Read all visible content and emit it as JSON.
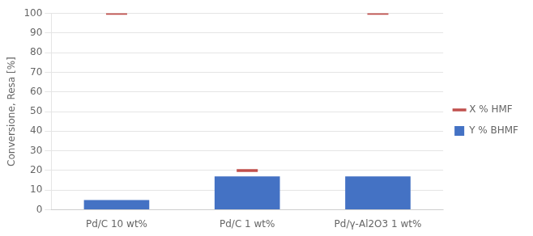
{
  "chart_data": {
    "type": "bar",
    "categories": [
      "Pd/C 10 wt%",
      "Pd/C 1 wt%",
      "Pd/γ-Al2O3 1 wt%"
    ],
    "series": [
      {
        "name": "Y % BHMF",
        "color": "#4472C4",
        "type": "bar",
        "values": [
          5,
          17,
          17
        ]
      },
      {
        "name": "X % HMF",
        "color": "#C0504D",
        "type": "line",
        "marker": "line",
        "values": [
          100,
          20,
          100
        ]
      }
    ],
    "ylabel": "Conversione, Resa [%]",
    "ylim": [
      0,
      100
    ],
    "yticks": [
      0,
      10,
      20,
      30,
      40,
      50,
      60,
      70,
      80,
      90,
      100
    ],
    "grid": "y",
    "legend": "right"
  }
}
